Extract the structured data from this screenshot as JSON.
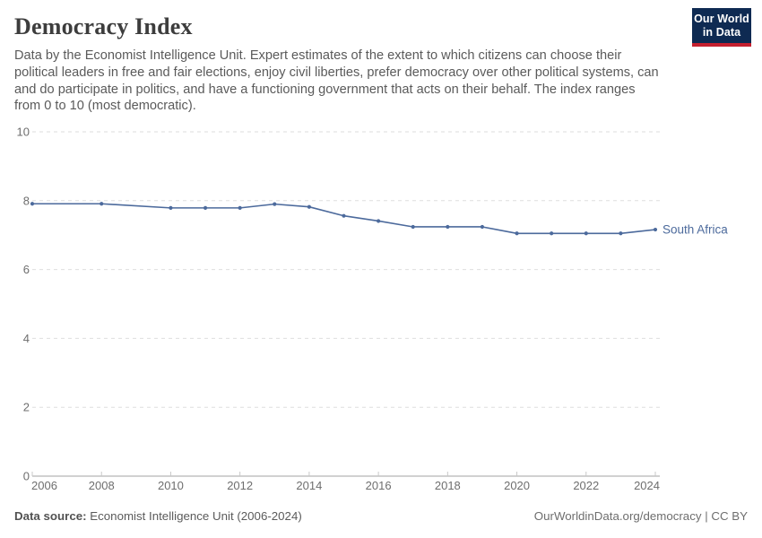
{
  "header": {
    "title": "Democracy Index",
    "subtitle_lines": [
      "Data by the Economist Intelligence Unit. Expert estimates of the extent to which citizens can choose their",
      "political leaders in free and fair elections, enjoy civil liberties, prefer democracy over other political systems, can",
      "and do participate in politics, and have a functioning government that acts on their behalf. The index ranges",
      "from 0 to 10 (most democratic)."
    ],
    "logo": {
      "line1": "Our World",
      "line2": "in Data",
      "bg_color": "#0e2a52",
      "accent_color": "#c5202f"
    }
  },
  "chart_data": {
    "type": "line",
    "title": "Democracy Index",
    "xlabel": "",
    "ylabel": "",
    "xlim": [
      2006,
      2024
    ],
    "ylim": [
      0,
      10
    ],
    "x_ticks": [
      2006,
      2008,
      2010,
      2012,
      2014,
      2016,
      2018,
      2020,
      2022,
      2024
    ],
    "y_ticks": [
      0,
      2,
      4,
      6,
      8,
      10
    ],
    "grid": "horizontal-dashed",
    "legend_position": "end-of-line-label",
    "series": [
      {
        "name": "South Africa",
        "color": "#4c6a9c",
        "x": [
          2006,
          2008,
          2010,
          2011,
          2012,
          2013,
          2014,
          2015,
          2016,
          2017,
          2018,
          2019,
          2020,
          2021,
          2022,
          2023,
          2024
        ],
        "values": [
          7.91,
          7.91,
          7.79,
          7.79,
          7.79,
          7.9,
          7.82,
          7.56,
          7.41,
          7.24,
          7.24,
          7.24,
          7.05,
          7.05,
          7.05,
          7.05,
          7.16
        ]
      }
    ],
    "style": {
      "gridline_color": "#dedede",
      "axis_line_color": "#a3a3a3",
      "tick_color": "#c8c8c8",
      "tick_label_color": "#6e6e6e"
    }
  },
  "footer": {
    "datasource_label": "Data source:",
    "datasource_value": " Economist Intelligence Unit (2006-2024)",
    "url": "OurWorldinData.org/democracy",
    "separator": " | ",
    "license": "CC BY"
  }
}
